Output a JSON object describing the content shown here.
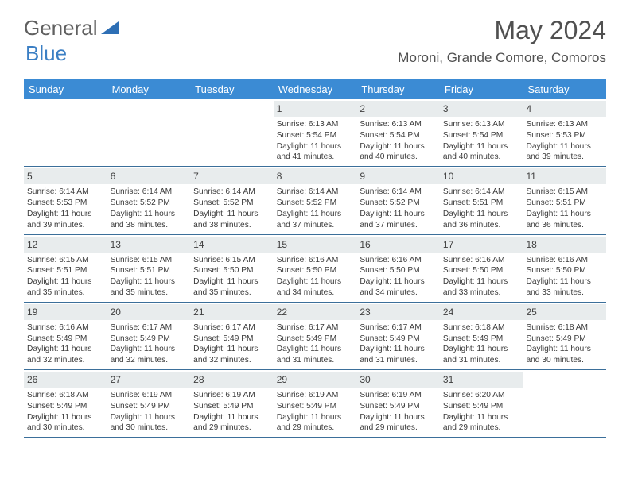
{
  "logo": {
    "word1": "General",
    "word2": "Blue"
  },
  "title": "May 2024",
  "location": "Moroni, Grande Comore, Comoros",
  "colors": {
    "header_bg": "#3b8bd4",
    "header_text": "#ffffff",
    "row_border": "#3b6f9a",
    "daynum_bg": "#e8eced",
    "text": "#3a3a3a",
    "title_text": "#505050",
    "logo_gray": "#606060",
    "logo_blue": "#3b7fc4"
  },
  "day_headers": [
    "Sunday",
    "Monday",
    "Tuesday",
    "Wednesday",
    "Thursday",
    "Friday",
    "Saturday"
  ],
  "weeks": [
    [
      null,
      null,
      null,
      {
        "num": "1",
        "sunrise": "6:13 AM",
        "sunset": "5:54 PM",
        "daylight": "11 hours and 41 minutes."
      },
      {
        "num": "2",
        "sunrise": "6:13 AM",
        "sunset": "5:54 PM",
        "daylight": "11 hours and 40 minutes."
      },
      {
        "num": "3",
        "sunrise": "6:13 AM",
        "sunset": "5:54 PM",
        "daylight": "11 hours and 40 minutes."
      },
      {
        "num": "4",
        "sunrise": "6:13 AM",
        "sunset": "5:53 PM",
        "daylight": "11 hours and 39 minutes."
      }
    ],
    [
      {
        "num": "5",
        "sunrise": "6:14 AM",
        "sunset": "5:53 PM",
        "daylight": "11 hours and 39 minutes."
      },
      {
        "num": "6",
        "sunrise": "6:14 AM",
        "sunset": "5:52 PM",
        "daylight": "11 hours and 38 minutes."
      },
      {
        "num": "7",
        "sunrise": "6:14 AM",
        "sunset": "5:52 PM",
        "daylight": "11 hours and 38 minutes."
      },
      {
        "num": "8",
        "sunrise": "6:14 AM",
        "sunset": "5:52 PM",
        "daylight": "11 hours and 37 minutes."
      },
      {
        "num": "9",
        "sunrise": "6:14 AM",
        "sunset": "5:52 PM",
        "daylight": "11 hours and 37 minutes."
      },
      {
        "num": "10",
        "sunrise": "6:14 AM",
        "sunset": "5:51 PM",
        "daylight": "11 hours and 36 minutes."
      },
      {
        "num": "11",
        "sunrise": "6:15 AM",
        "sunset": "5:51 PM",
        "daylight": "11 hours and 36 minutes."
      }
    ],
    [
      {
        "num": "12",
        "sunrise": "6:15 AM",
        "sunset": "5:51 PM",
        "daylight": "11 hours and 35 minutes."
      },
      {
        "num": "13",
        "sunrise": "6:15 AM",
        "sunset": "5:51 PM",
        "daylight": "11 hours and 35 minutes."
      },
      {
        "num": "14",
        "sunrise": "6:15 AM",
        "sunset": "5:50 PM",
        "daylight": "11 hours and 35 minutes."
      },
      {
        "num": "15",
        "sunrise": "6:16 AM",
        "sunset": "5:50 PM",
        "daylight": "11 hours and 34 minutes."
      },
      {
        "num": "16",
        "sunrise": "6:16 AM",
        "sunset": "5:50 PM",
        "daylight": "11 hours and 34 minutes."
      },
      {
        "num": "17",
        "sunrise": "6:16 AM",
        "sunset": "5:50 PM",
        "daylight": "11 hours and 33 minutes."
      },
      {
        "num": "18",
        "sunrise": "6:16 AM",
        "sunset": "5:50 PM",
        "daylight": "11 hours and 33 minutes."
      }
    ],
    [
      {
        "num": "19",
        "sunrise": "6:16 AM",
        "sunset": "5:49 PM",
        "daylight": "11 hours and 32 minutes."
      },
      {
        "num": "20",
        "sunrise": "6:17 AM",
        "sunset": "5:49 PM",
        "daylight": "11 hours and 32 minutes."
      },
      {
        "num": "21",
        "sunrise": "6:17 AM",
        "sunset": "5:49 PM",
        "daylight": "11 hours and 32 minutes."
      },
      {
        "num": "22",
        "sunrise": "6:17 AM",
        "sunset": "5:49 PM",
        "daylight": "11 hours and 31 minutes."
      },
      {
        "num": "23",
        "sunrise": "6:17 AM",
        "sunset": "5:49 PM",
        "daylight": "11 hours and 31 minutes."
      },
      {
        "num": "24",
        "sunrise": "6:18 AM",
        "sunset": "5:49 PM",
        "daylight": "11 hours and 31 minutes."
      },
      {
        "num": "25",
        "sunrise": "6:18 AM",
        "sunset": "5:49 PM",
        "daylight": "11 hours and 30 minutes."
      }
    ],
    [
      {
        "num": "26",
        "sunrise": "6:18 AM",
        "sunset": "5:49 PM",
        "daylight": "11 hours and 30 minutes."
      },
      {
        "num": "27",
        "sunrise": "6:19 AM",
        "sunset": "5:49 PM",
        "daylight": "11 hours and 30 minutes."
      },
      {
        "num": "28",
        "sunrise": "6:19 AM",
        "sunset": "5:49 PM",
        "daylight": "11 hours and 29 minutes."
      },
      {
        "num": "29",
        "sunrise": "6:19 AM",
        "sunset": "5:49 PM",
        "daylight": "11 hours and 29 minutes."
      },
      {
        "num": "30",
        "sunrise": "6:19 AM",
        "sunset": "5:49 PM",
        "daylight": "11 hours and 29 minutes."
      },
      {
        "num": "31",
        "sunrise": "6:20 AM",
        "sunset": "5:49 PM",
        "daylight": "11 hours and 29 minutes."
      },
      null
    ]
  ],
  "labels": {
    "sunrise_prefix": "Sunrise: ",
    "sunset_prefix": "Sunset: ",
    "daylight_prefix": "Daylight: "
  }
}
